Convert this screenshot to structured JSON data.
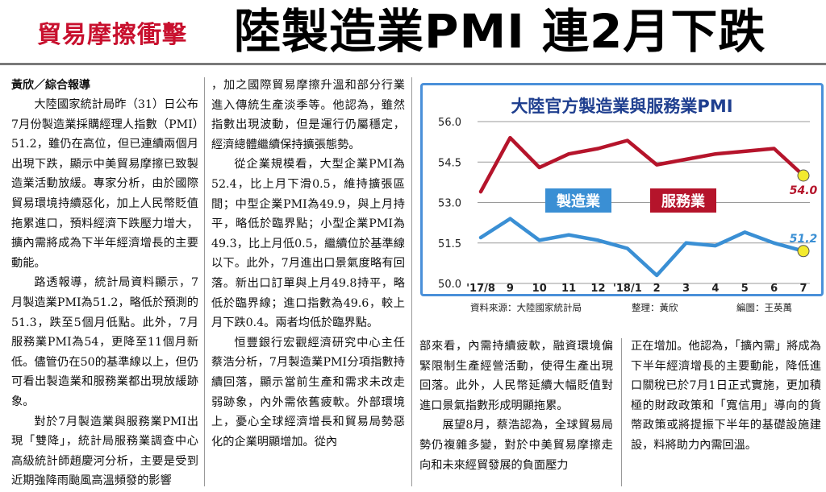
{
  "header": {
    "kicker": "貿易摩擦衝擊",
    "headline": "陸製造業PMI  連2月下跌"
  },
  "article": {
    "byline": "黃欣／綜合報導",
    "col1": [
      "大陸國家統計局昨（31）日公布7月份製造業採購經理人指數（PMI）51.2，雖仍在高位，但已連續兩個月出現下跌，顯示中美貿易摩擦已致製造業活動放緩。專家分析，由於國際貿易環境持續惡化，加上人民幣貶值拖累進口，預料經濟下跌壓力增大，擴內需將成為下半年經濟增長的主要動能。",
      "路透報導，統計局資料顯示，7月製造業PMI為51.2，略低於預測的51.3，跌至5個月低點。此外，7月服務業PMI為54，更降至11個月新低。儘管仍在50的基準線以上，但仍可看出製造業和服務業都出現放緩跡象。",
      "對於7月製造業與服務業PMI出現「雙降」，統計局服務業調查中心高級統計師趙慶河分析，主要是受到近期強降雨颱風高溫頻發的影響"
    ],
    "col2": [
      "，加之國際貿易摩擦升溫和部分行業進入傳統生產淡季等。他認為，雖然指數出現波動，但是運行仍屬穩定，經濟總體繼續保持擴張態勢。",
      "從企業規模看，大型企業PMI為52.4，比上月下滑0.5，維持擴張區間；中型企業PMI為49.9，與上月持平，略低於臨界點；小型企業PMI為49.3，比上月低0.5，繼續位於基準線以下。此外，7月進出口景氣度略有回落。新出口訂單與上月49.8持平，略低於臨界線；進口指數為49.6，較上月下跌0.4。兩者均低於臨界點。",
      "恒豐銀行宏觀經濟研究中心主任蔡浩分析，7月製造業PMI分項指數持續回落，顯示當前生產和需求未改走弱跡象，內外需依舊疲軟。外部環境上，憂心全球經濟增長和貿易局勢惡化的企業明顯增加。從內"
    ],
    "col3": [
      "部來看，內需持續疲軟，融資環境偏緊限制生產經營活動，使得生產出現回落。此外，人民幣延續大幅貶值對進口景氣指數形成明顯拖累。",
      "展望8月，蔡浩認為，全球貿易局勢仍複雜多變，對於中美貿易摩擦走向和未來經貿發展的負面壓力"
    ],
    "col4": [
      "正在增加。他認為，「擴內需」將成為下半年經濟增長的主要動能，降低進口關稅已於7月1日正式實施，更加積極的財政政策和「寬信用」導向的貨幣政策或將提振下半年的基礎設施建設，料將助力內需回溫。"
    ]
  },
  "chart_data": {
    "type": "line",
    "title": "大陸官方製造業與服務業PMI",
    "categories": [
      "'17/8",
      "9",
      "10",
      "11",
      "12",
      "'18/1",
      "2",
      "3",
      "4",
      "5",
      "6",
      "7"
    ],
    "ylim": [
      50.0,
      56.0
    ],
    "yticks": [
      "56.0",
      "54.5",
      "53.0",
      "51.5",
      "50.0"
    ],
    "series": [
      {
        "name": "服務業",
        "values": [
          53.4,
          55.4,
          54.3,
          54.8,
          55.0,
          55.3,
          54.4,
          54.6,
          54.8,
          54.9,
          55.0,
          54.0
        ],
        "color": "#b5142b",
        "end_label": "54.0"
      },
      {
        "name": "製造業",
        "values": [
          51.7,
          52.4,
          51.6,
          51.8,
          51.6,
          51.3,
          50.3,
          51.5,
          51.4,
          51.9,
          51.5,
          51.2
        ],
        "color": "#3a8fd4",
        "end_label": "51.2"
      }
    ],
    "grid": true,
    "source": "資料來源：大陸國家統計局",
    "editor": "整理：黃欣",
    "designer": "編圖：王英萬"
  }
}
